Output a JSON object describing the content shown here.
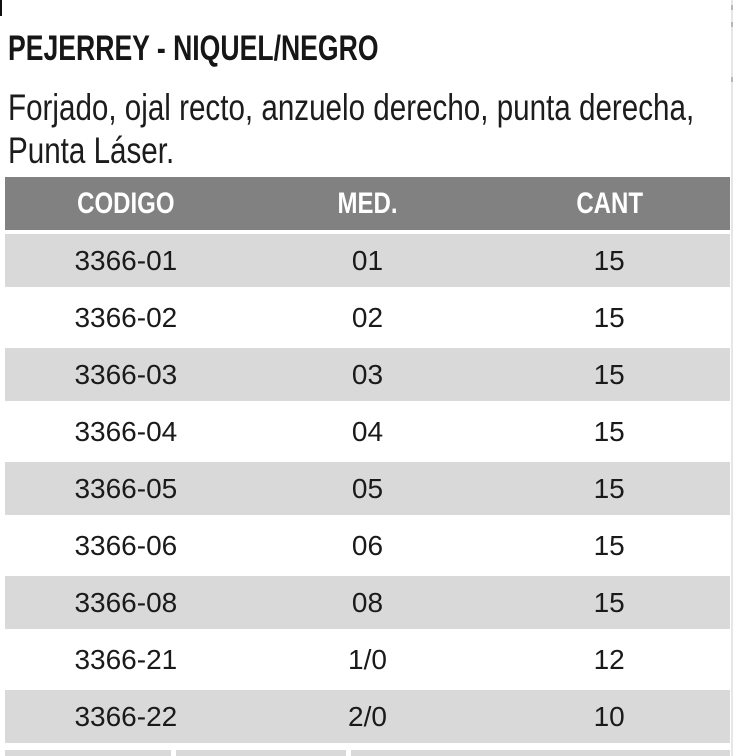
{
  "product": {
    "title": "PEJERREY - NIQUEL/NEGRO",
    "description_lines": [
      "Forjado, ojal recto, anzuelo derecho, punta derecha,",
      "Punta Láser."
    ]
  },
  "table": {
    "columns": [
      "CODIGO",
      "MED.",
      "CANT"
    ],
    "rows": [
      {
        "codigo": "3366-01",
        "med": "01",
        "cant": "15"
      },
      {
        "codigo": "3366-02",
        "med": "02",
        "cant": "15"
      },
      {
        "codigo": "3366-03",
        "med": "03",
        "cant": "15"
      },
      {
        "codigo": "3366-04",
        "med": "04",
        "cant": "15"
      },
      {
        "codigo": "3366-05",
        "med": "05",
        "cant": "15"
      },
      {
        "codigo": "3366-06",
        "med": "06",
        "cant": "15"
      },
      {
        "codigo": "3366-08",
        "med": "08",
        "cant": "15"
      },
      {
        "codigo": "3366-21",
        "med": "1/0",
        "cant": "12"
      },
      {
        "codigo": "3366-22",
        "med": "2/0",
        "cant": "10"
      }
    ]
  },
  "colors": {
    "page_bg": "#ffffff",
    "header_bg": "#818181",
    "header_text": "#ffffff",
    "alt_row_bg": "#d9d9d9",
    "body_text": "#1a1a1a"
  }
}
